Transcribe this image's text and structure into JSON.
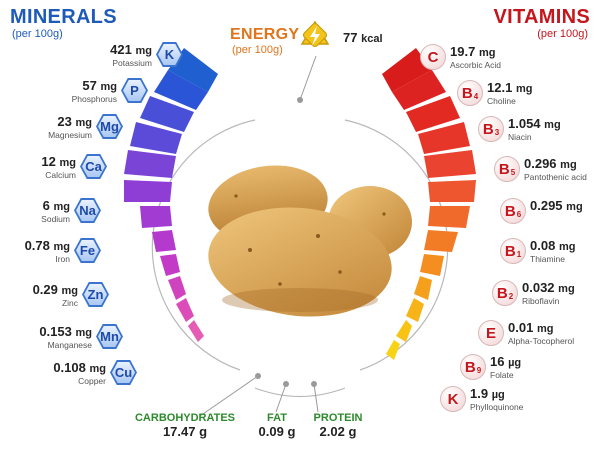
{
  "minerals": {
    "title": "MINERALS",
    "subtitle": "(per 100g)",
    "items": [
      {
        "symbol": "K",
        "value": "421",
        "unit": "mg",
        "name": "Potassium"
      },
      {
        "symbol": "P",
        "value": "57",
        "unit": "mg",
        "name": "Phosphorus"
      },
      {
        "symbol": "Mg",
        "value": "23",
        "unit": "mg",
        "name": "Magnesium"
      },
      {
        "symbol": "Ca",
        "value": "12",
        "unit": "mg",
        "name": "Calcium"
      },
      {
        "symbol": "Na",
        "value": "6",
        "unit": "mg",
        "name": "Sodium"
      },
      {
        "symbol": "Fe",
        "value": "0.78",
        "unit": "mg",
        "name": "Iron"
      },
      {
        "symbol": "Zn",
        "value": "0.29",
        "unit": "mg",
        "name": "Zinc"
      },
      {
        "symbol": "Mn",
        "value": "0.153",
        "unit": "mg",
        "name": "Manganese"
      },
      {
        "symbol": "Cu",
        "value": "0.108",
        "unit": "mg",
        "name": "Copper"
      }
    ]
  },
  "vitamins": {
    "title": "VITAMINS",
    "subtitle": "(per 100g)",
    "items": [
      {
        "symbol": "C",
        "sub": "",
        "value": "19.7",
        "unit": "mg",
        "name": "Ascorbic Acid"
      },
      {
        "symbol": "B",
        "sub": "4",
        "value": "12.1",
        "unit": "mg",
        "name": "Choline"
      },
      {
        "symbol": "B",
        "sub": "3",
        "value": "1.054",
        "unit": "mg",
        "name": "Niacin"
      },
      {
        "symbol": "B",
        "sub": "5",
        "value": "0.296",
        "unit": "mg",
        "name": "Pantothenic acid"
      },
      {
        "symbol": "B",
        "sub": "6",
        "value": "0.295",
        "unit": "mg",
        "name": ""
      },
      {
        "symbol": "B",
        "sub": "1",
        "value": "0.08",
        "unit": "mg",
        "name": "Thiamine"
      },
      {
        "symbol": "B",
        "sub": "2",
        "value": "0.032",
        "unit": "mg",
        "name": "Riboflavin"
      },
      {
        "symbol": "E",
        "sub": "",
        "value": "0.01",
        "unit": "mg",
        "name": "Alpha-Tocopherol"
      },
      {
        "symbol": "B",
        "sub": "9",
        "value": "16",
        "unit": "µg",
        "name": "Folate"
      },
      {
        "symbol": "K",
        "sub": "",
        "value": "1.9",
        "unit": "µg",
        "name": "Phylloquinone"
      }
    ]
  },
  "energy": {
    "title": "ENERGY",
    "subtitle": "(per 100g)",
    "value": "77",
    "unit": "kcal"
  },
  "macros": [
    {
      "name": "CARBOHYDRATES",
      "value": "17.47",
      "unit": "g"
    },
    {
      "name": "FAT",
      "value": "0.09",
      "unit": "g"
    },
    {
      "name": "PROTEIN",
      "value": "2.02",
      "unit": "g"
    }
  ],
  "colors": {
    "minerals_title": "#1e5bb8",
    "vitamins_title": "#c4161c",
    "energy": "#e0751c",
    "macro": "#2c8a2c"
  }
}
